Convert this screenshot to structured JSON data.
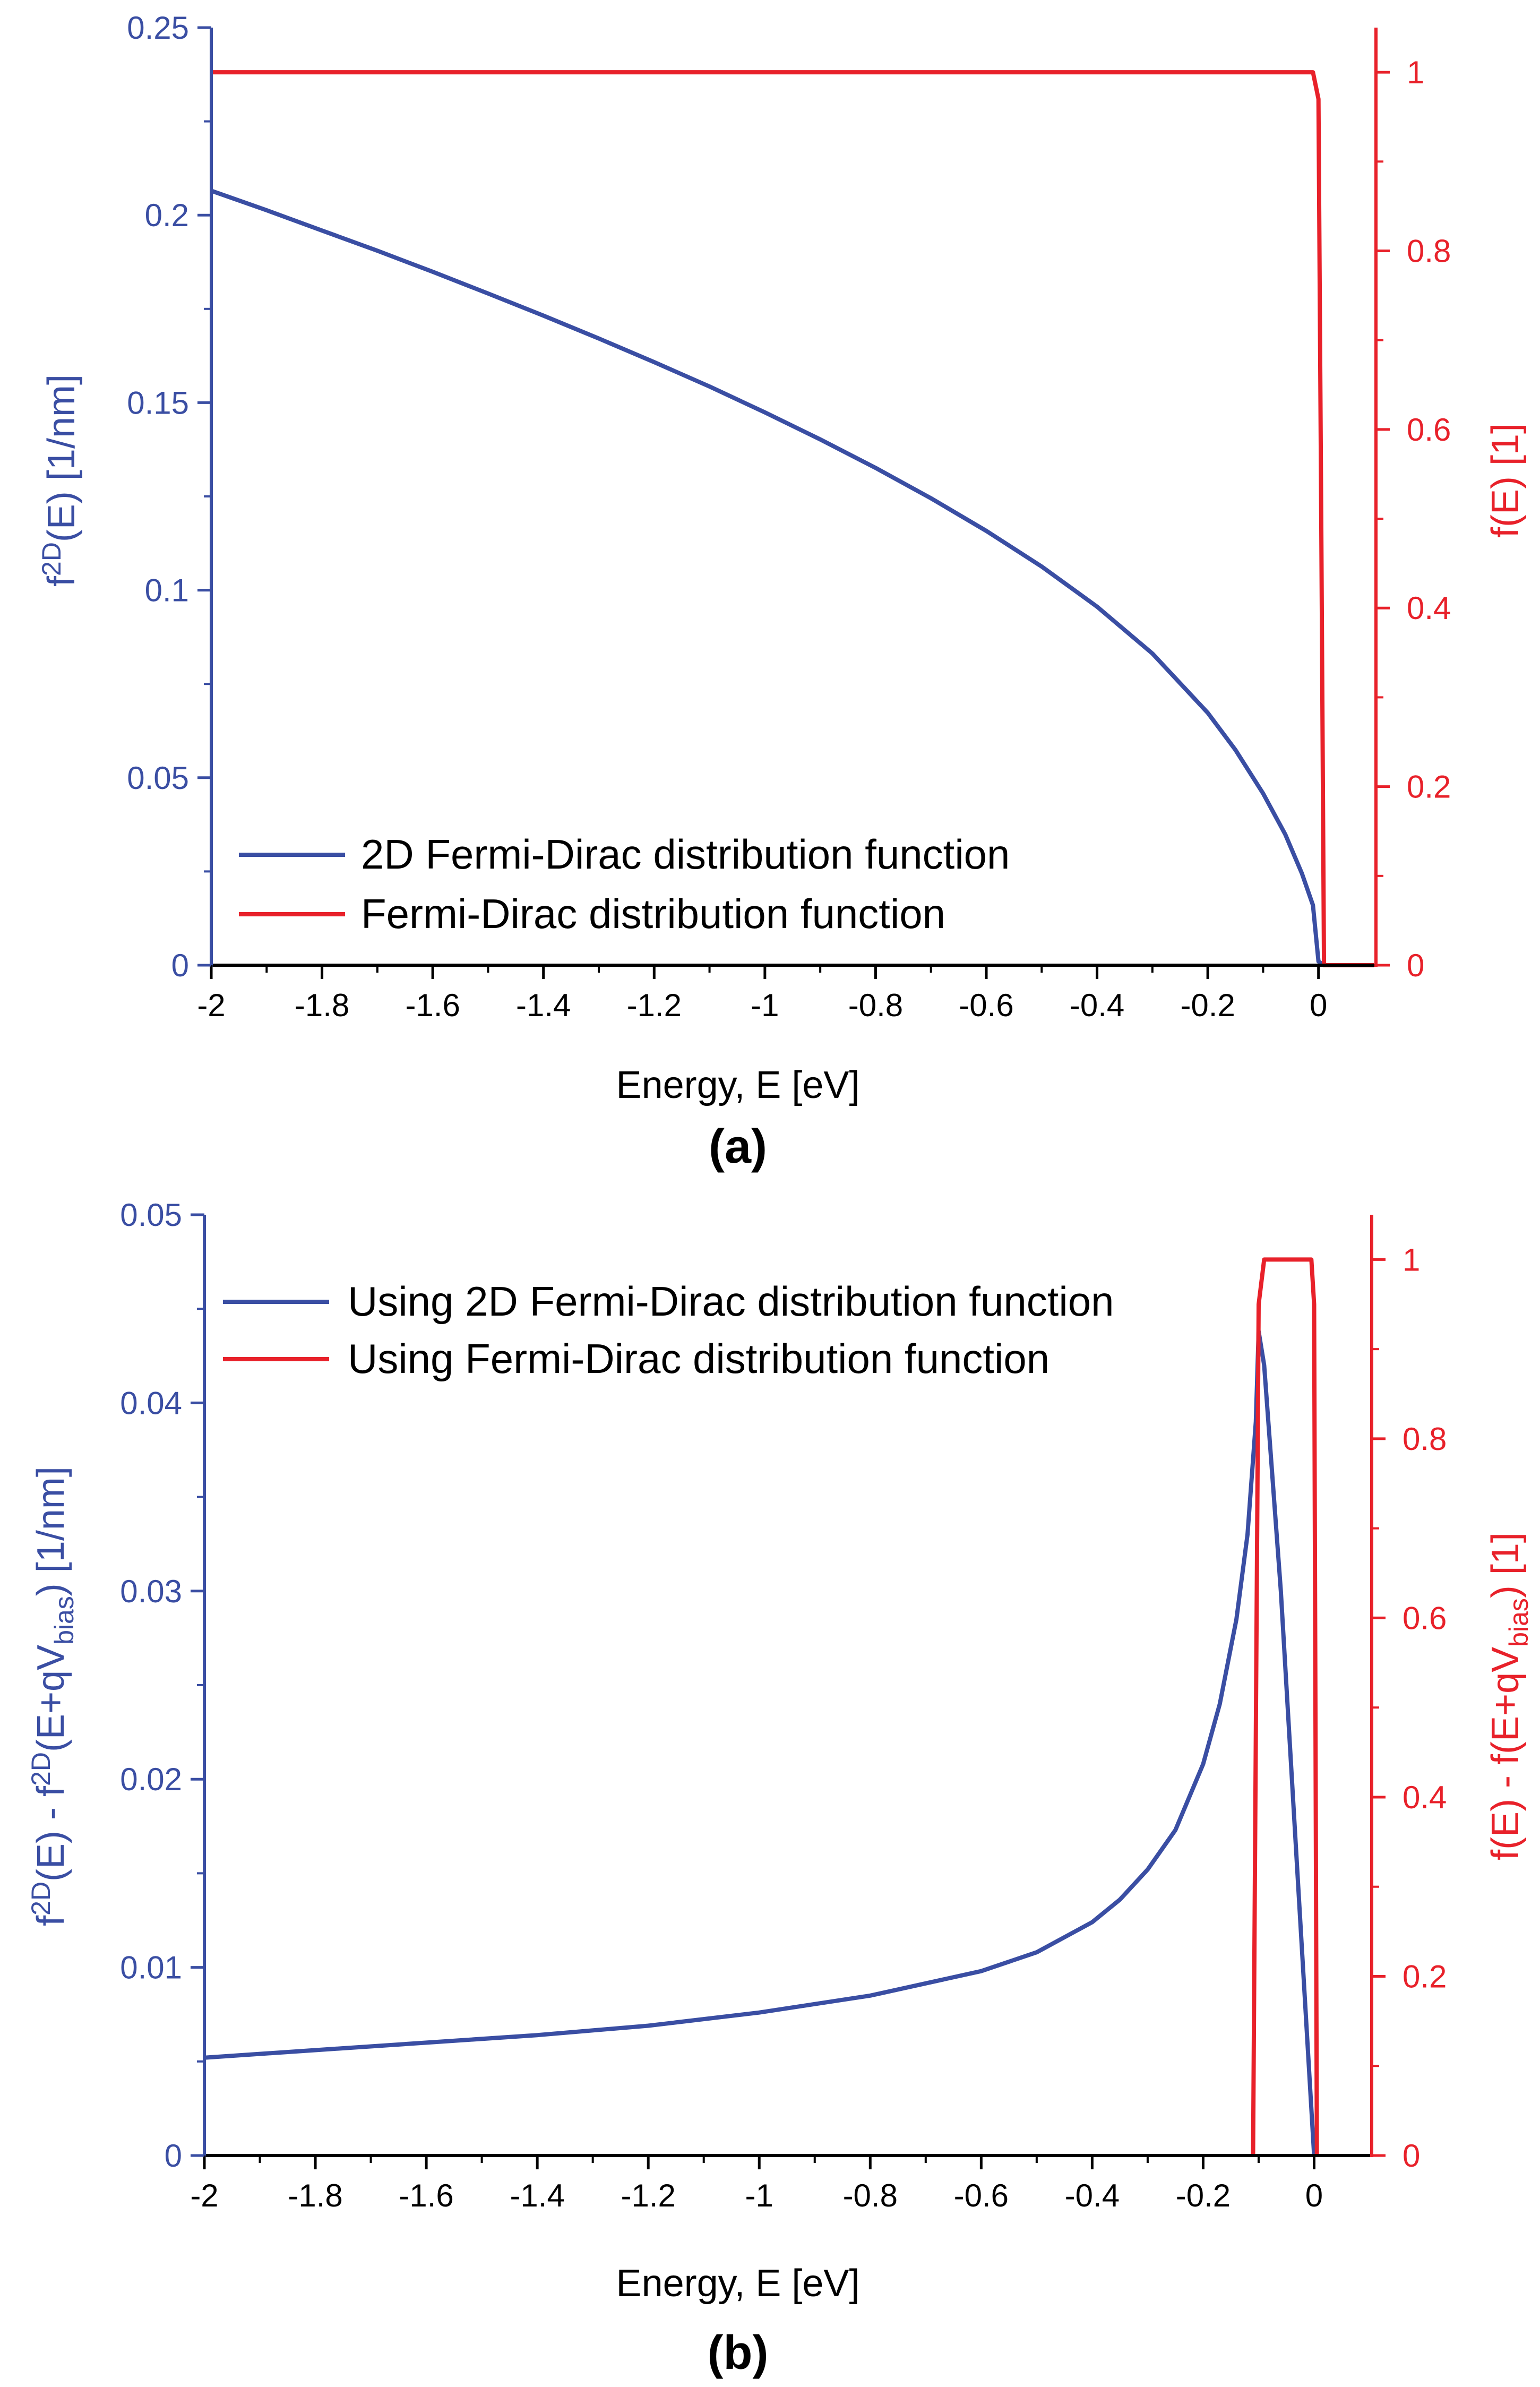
{
  "colors": {
    "blue": "#3a4ea3",
    "red": "#e8212a",
    "axis": "#000000"
  },
  "chart_data": [
    {
      "type": "line",
      "panel_label": "(a)",
      "xlabel": "Energy, E [eV]",
      "xlim": [
        -2,
        0.1
      ],
      "xticks": [
        -2,
        -1.8,
        -1.6,
        -1.4,
        -1.2,
        -1,
        -0.8,
        -0.6,
        -0.4,
        -0.2,
        0
      ],
      "xtick_labels": [
        "-2",
        "-1.8",
        "-1.6",
        "-1.4",
        "-1.2",
        "-1",
        "-0.8",
        "-0.6",
        "-0.4",
        "-0.2",
        "0"
      ],
      "ylabel_left": {
        "base": "f",
        "sup": "2D",
        "rest": "(E) [1/nm]"
      },
      "ylim_left": [
        0,
        0.25
      ],
      "yticks_left": [
        0,
        0.05,
        0.1,
        0.15,
        0.2,
        0.25
      ],
      "ytick_labels_left": [
        "0",
        "0.05",
        "0.1",
        "0.15",
        "0.2",
        "0.25"
      ],
      "ylabel_right": "f(E) [1]",
      "ylim_right": [
        0,
        1.05
      ],
      "yticks_right": [
        0,
        0.2,
        0.4,
        0.6,
        0.8,
        1
      ],
      "ytick_labels_right": [
        "0",
        "0.2",
        "0.4",
        "0.6",
        "0.8",
        "1"
      ],
      "legend_position": "bottom-left",
      "series": [
        {
          "name": "2D Fermi-Dirac distribution function",
          "axis": "left",
          "color": "#3a4ea3",
          "x": [
            -2,
            -1.9,
            -1.8,
            -1.7,
            -1.6,
            -1.5,
            -1.4,
            -1.3,
            -1.2,
            -1.1,
            -1.0,
            -0.9,
            -0.8,
            -0.7,
            -0.6,
            -0.5,
            -0.4,
            -0.3,
            -0.2,
            -0.15,
            -0.1,
            -0.06,
            -0.03,
            -0.01,
            0,
            0.01,
            0.1
          ],
          "y": [
            0.2065,
            0.2013,
            0.1959,
            0.1905,
            0.1849,
            0.1791,
            0.1732,
            0.1671,
            0.1608,
            0.1543,
            0.1474,
            0.1402,
            0.1326,
            0.1245,
            0.1158,
            0.1063,
            0.0956,
            0.0831,
            0.0673,
            0.0574,
            0.0458,
            0.0349,
            0.0245,
            0.016,
            0.001,
            0,
            0
          ]
        },
        {
          "name": "Fermi-Dirac distribution function",
          "axis": "right",
          "color": "#e8212a",
          "x": [
            -2,
            -0.01,
            0,
            0.005,
            0.01,
            0.1
          ],
          "y": [
            1,
            1,
            0.97,
            0.5,
            0,
            0
          ]
        }
      ]
    },
    {
      "type": "line",
      "panel_label": "(b)",
      "xlabel": "Energy, E [eV]",
      "xlim": [
        -2,
        0.1
      ],
      "xticks": [
        -2,
        -1.8,
        -1.6,
        -1.4,
        -1.2,
        -1,
        -0.8,
        -0.6,
        -0.4,
        -0.2,
        0
      ],
      "xtick_labels": [
        "-2",
        "-1.8",
        "-1.6",
        "-1.4",
        "-1.2",
        "-1",
        "-0.8",
        "-0.6",
        "-0.4",
        "-0.2",
        "0"
      ],
      "ylabel_left": {
        "parts": [
          "f",
          "2D",
          "(E) - f",
          "2D",
          "(E+qV",
          "bias",
          ") [1/nm]"
        ]
      },
      "ylim_left": [
        0,
        0.05
      ],
      "yticks_left": [
        0,
        0.01,
        0.02,
        0.03,
        0.04,
        0.05
      ],
      "ytick_labels_left": [
        "0",
        "0.01",
        "0.02",
        "0.03",
        "0.04",
        "0.05"
      ],
      "ylabel_right": {
        "parts": [
          "f(E) - f(E+qV",
          "bias",
          ") [1]"
        ]
      },
      "ylim_right": [
        0,
        1.05
      ],
      "yticks_right": [
        0,
        0.2,
        0.4,
        0.6,
        0.8,
        1
      ],
      "ytick_labels_right": [
        "0",
        "0.2",
        "0.4",
        "0.6",
        "0.8",
        "1"
      ],
      "legend_position": "top-left",
      "series": [
        {
          "name": "Using 2D Fermi-Dirac distribution function",
          "axis": "left",
          "color": "#3a4ea3",
          "x": [
            -2,
            -1.8,
            -1.6,
            -1.4,
            -1.2,
            -1.0,
            -0.8,
            -0.6,
            -0.5,
            -0.4,
            -0.35,
            -0.3,
            -0.25,
            -0.2,
            -0.17,
            -0.14,
            -0.12,
            -0.105,
            -0.1,
            -0.09,
            -0.06,
            -0.03,
            0
          ],
          "y": [
            0.0052,
            0.0056,
            0.006,
            0.0064,
            0.0069,
            0.0076,
            0.0085,
            0.0098,
            0.0108,
            0.0124,
            0.0136,
            0.0152,
            0.0173,
            0.0208,
            0.024,
            0.0285,
            0.033,
            0.039,
            0.0438,
            0.042,
            0.03,
            0.015,
            0
          ]
        },
        {
          "name": "Using Fermi-Dirac distribution function",
          "axis": "right",
          "color": "#e8212a",
          "x": [
            -0.11,
            -0.1,
            -0.09,
            -0.005,
            0,
            0.005
          ],
          "y": [
            0,
            0.95,
            1,
            1,
            0.95,
            0
          ]
        }
      ]
    }
  ]
}
